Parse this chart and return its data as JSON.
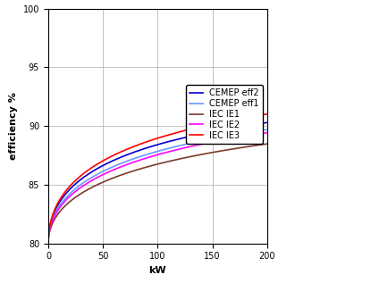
{
  "title": "",
  "xlabel": "kW",
  "ylabel": "efficiency %",
  "xlim": [
    0,
    200
  ],
  "ylim": [
    80,
    100
  ],
  "xticks": [
    0,
    50,
    100,
    150,
    200
  ],
  "yticks": [
    80,
    85,
    90,
    95,
    100
  ],
  "grid": true,
  "background_color": "#ffffff",
  "series": [
    {
      "label": "CEMEP eff2",
      "color": "#0000cc",
      "asymptote": 94.8,
      "start": 80.0,
      "rate": 0.12
    },
    {
      "label": "CEMEP eff1",
      "color": "#6699ff",
      "asymptote": 94.6,
      "start": 80.0,
      "rate": 0.11
    },
    {
      "label": "IEC IE1",
      "color": "#7a3b2e",
      "asymptote": 93.9,
      "start": 80.0,
      "rate": 0.095
    },
    {
      "label": "IEC IE2",
      "color": "#ff00ff",
      "asymptote": 95.0,
      "start": 80.0,
      "rate": 0.1
    },
    {
      "label": "IEC IE3",
      "color": "#ff0000",
      "asymptote": 96.2,
      "start": 80.0,
      "rate": 0.115
    }
  ],
  "linewidth": 1.2,
  "figsize": [
    4.15,
    3.17
  ],
  "dpi": 100,
  "legend_fontsize": 7,
  "tick_fontsize": 7,
  "label_fontsize": 8
}
